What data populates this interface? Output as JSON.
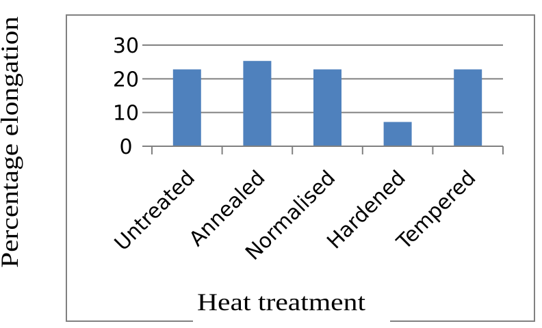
{
  "chart_data": {
    "type": "bar",
    "categories": [
      "Untreated",
      "Annealed",
      "Normalised",
      "Hardened",
      "Tempered"
    ],
    "values": [
      22.8,
      25.3,
      22.8,
      7.2,
      22.8
    ],
    "xlabel": "Heat treatment",
    "ylabel": "Percentage elongation",
    "ylim": [
      0,
      30
    ],
    "yticks": [
      0,
      10,
      20,
      30
    ],
    "grid": true,
    "bar_color": "#4F81BD",
    "grid_color": "#808080",
    "frame_color": "#808080"
  }
}
